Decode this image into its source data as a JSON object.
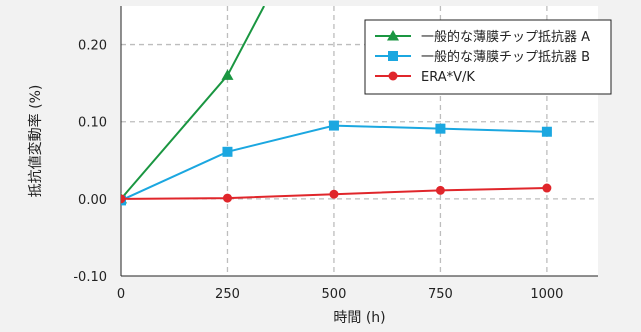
{
  "chart_data": {
    "type": "line",
    "xlabel": "時間 (h)",
    "ylabel": "抵抗値変動率 (%)",
    "xlim": [
      0,
      1120
    ],
    "ylim": [
      -0.1,
      0.25
    ],
    "x_ticks": [
      0,
      250,
      500,
      750,
      1000
    ],
    "x_tick_labels": [
      "0",
      "250",
      "500",
      "750",
      "1000"
    ],
    "y_ticks": [
      -0.1,
      0.0,
      0.1,
      0.2
    ],
    "y_tick_labels": [
      "-0.10",
      "0.00",
      "0.10",
      "0.20"
    ],
    "grid": true,
    "legend_position": "top-right",
    "series": [
      {
        "name": "一般的な薄膜チップ抵抗器 A",
        "color": "#1a9641",
        "marker": "triangle",
        "x": [
          0,
          250,
          336
        ],
        "y": [
          0.0,
          0.16,
          0.25
        ],
        "marker_points": [
          0,
          1
        ]
      },
      {
        "name": "一般的な薄膜チップ抵抗器 B",
        "color": "#1ba7e0",
        "marker": "square",
        "x": [
          0,
          250,
          500,
          750,
          1000
        ],
        "y": [
          -0.002,
          0.061,
          0.095,
          0.091,
          0.087
        ],
        "marker_points": [
          0,
          1,
          2,
          3,
          4
        ]
      },
      {
        "name": "ERA*V/K",
        "color": "#e0262b",
        "marker": "circle",
        "x": [
          0,
          250,
          500,
          750,
          1000
        ],
        "y": [
          0.0,
          0.001,
          0.006,
          0.011,
          0.014
        ],
        "marker_points": [
          0,
          1,
          2,
          3,
          4
        ]
      }
    ]
  }
}
